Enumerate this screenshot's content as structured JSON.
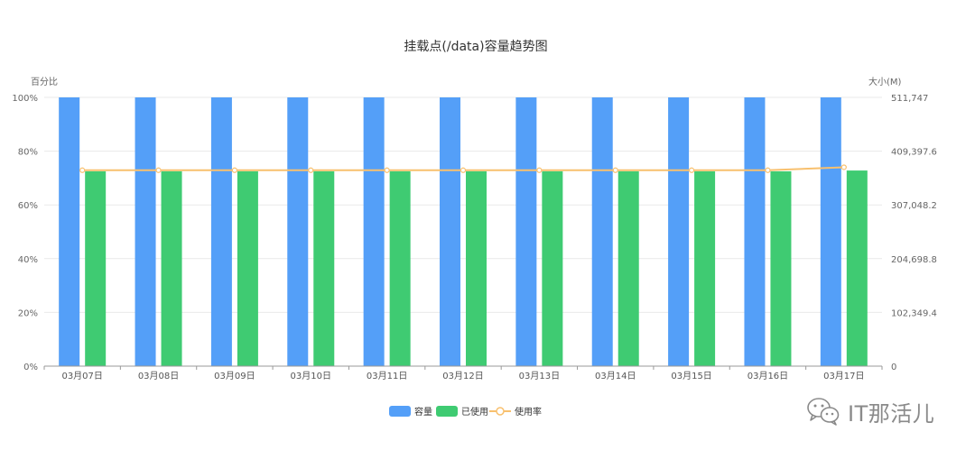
{
  "chart_data": {
    "type": "bar",
    "title": "挂载点(/data)容量趋势图",
    "categories": [
      "03月07日",
      "03月08日",
      "03月09日",
      "03月10日",
      "03月11日",
      "03月12日",
      "03月13日",
      "03月14日",
      "03月15日",
      "03月16日",
      "03月17日"
    ],
    "left_axis": {
      "name": "百分比",
      "ticks": [
        "0%",
        "20%",
        "40%",
        "60%",
        "80%",
        "100%"
      ],
      "range": [
        0,
        100
      ]
    },
    "right_axis": {
      "name": "大小(M)",
      "ticks": [
        "0",
        "102,349.4",
        "204,698.8",
        "307,048.2",
        "409,397.6",
        "511,747"
      ],
      "range": [
        0,
        511747
      ]
    },
    "series": [
      {
        "name": "容量",
        "type": "bar",
        "axis": "right",
        "color": "#549ff8",
        "values": [
          511747,
          511747,
          511747,
          511747,
          511747,
          511747,
          511747,
          511747,
          511747,
          511747,
          511747
        ]
      },
      {
        "name": "已使用",
        "type": "bar",
        "axis": "right",
        "color": "#3fcb72",
        "values": [
          371000,
          371000,
          371000,
          371000,
          371000,
          371000,
          371000,
          371000,
          371000,
          371000,
          372500
        ]
      },
      {
        "name": "使用率",
        "type": "line",
        "axis": "left",
        "color": "#f8c06e",
        "values": [
          72.9,
          72.9,
          72.9,
          72.9,
          72.9,
          72.9,
          72.9,
          72.9,
          72.9,
          72.9,
          74.0
        ]
      }
    ],
    "grid": true,
    "legend_position": "bottom-center"
  },
  "watermark": {
    "text": "IT那活儿",
    "icon": "wechat-icon"
  }
}
